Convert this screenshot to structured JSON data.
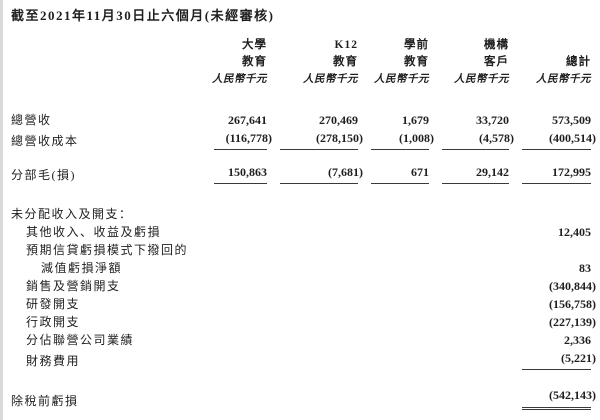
{
  "title": "截至2021年11月30日止六個月(未經審核)",
  "table": {
    "columns": [
      {
        "line1": "大學",
        "line2": "教育",
        "unit": "人民幣千元"
      },
      {
        "line1": "K12",
        "line2": "教育",
        "unit": "人民幣千元"
      },
      {
        "line1": "學前",
        "line2": "教育",
        "unit": "人民幣千元"
      },
      {
        "line1": "機構",
        "line2": "客戶",
        "unit": "人民幣千元"
      },
      {
        "line1": "",
        "line2": "總計",
        "unit": "人民幣千元"
      }
    ],
    "rows": [
      {
        "label": "總營收",
        "values": [
          "267,641",
          "270,469",
          "1,679",
          "33,720",
          "573,509"
        ]
      },
      {
        "label": "總營收成本",
        "values": [
          "(116,778)",
          "(278,150)",
          "(1,008)",
          "(4,578)",
          "(400,514)"
        ],
        "underline": "single"
      },
      {
        "label": "分部毛(損)",
        "values": [
          "150,863",
          "(7,681)",
          "671",
          "29,142",
          "172,995"
        ],
        "underline": "single"
      },
      {
        "label": "未分配收入及開支："
      },
      {
        "label": "其他收入、收益及虧損",
        "total": "12,405"
      },
      {
        "label": "預期信貸虧損模式下撥回的"
      },
      {
        "label": "減值虧損淨額",
        "total": "83"
      },
      {
        "label": "銷售及營銷開支",
        "total": "(340,844)"
      },
      {
        "label": "研發開支",
        "total": "(156,758)"
      },
      {
        "label": "行政開支",
        "total": "(227,139)"
      },
      {
        "label": "分佔聯營公司業績",
        "total": "2,336"
      },
      {
        "label": "財務費用",
        "total": "(5,221)",
        "underline": "single-total"
      },
      {
        "label": "除稅前虧損",
        "total": "(542,143)",
        "underline": "double-total"
      }
    ]
  }
}
